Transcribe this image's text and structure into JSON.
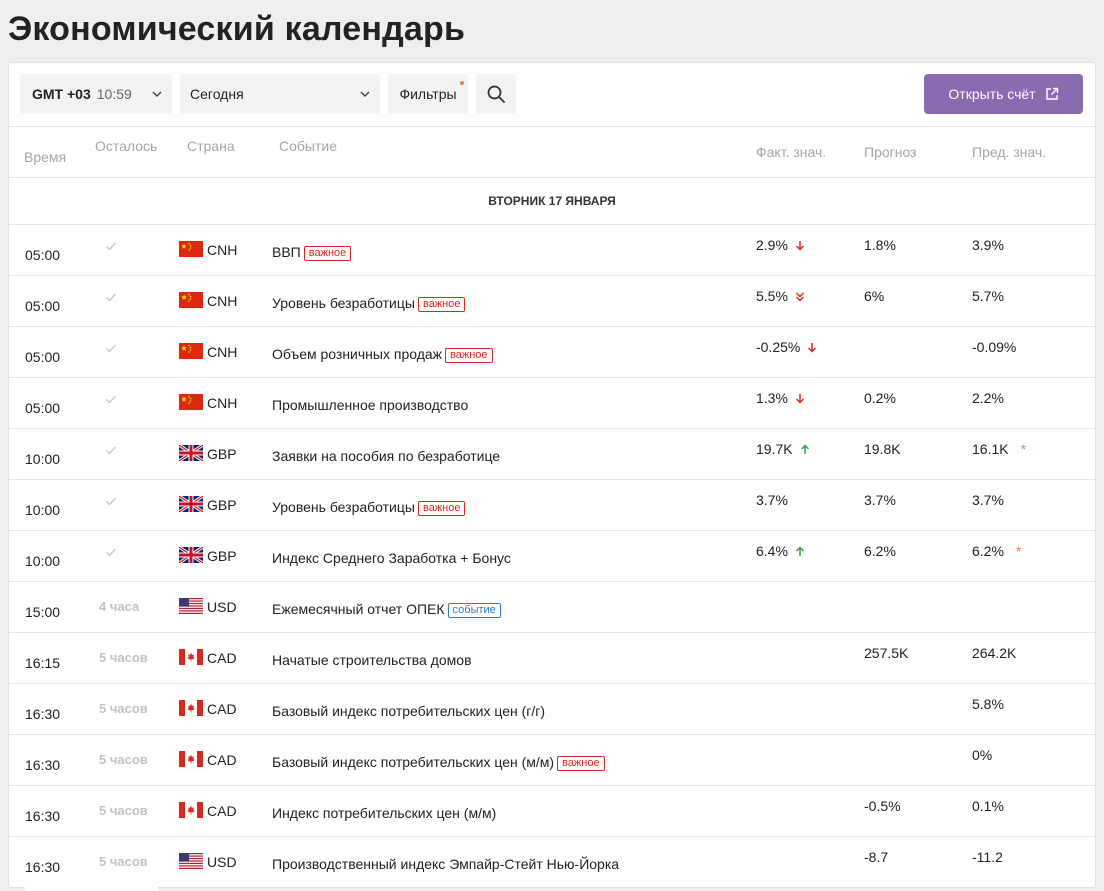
{
  "page_title": "Экономический календарь",
  "toolbar": {
    "timezone_offset": "GMT +03",
    "timezone_time": "10:59",
    "day_select": "Сегодня",
    "filters_label": "Фильтры",
    "open_account_label": "Открыть счёт"
  },
  "columns": {
    "time": "Время",
    "remaining": "Осталось",
    "country": "Страна",
    "event": "Событие",
    "actual": "Факт. знач.",
    "forecast": "Прогноз",
    "previous": "Пред. знач."
  },
  "date_header": "ВТОРНИК 17 ЯНВАРЯ",
  "colors": {
    "accent": "#8a6ab0",
    "important_badge": "#e0251b",
    "event_badge": "#2d78d6",
    "arrow_down": "#e0251b",
    "arrow_up": "#2ea84a",
    "revised_star": "#f07f3c"
  },
  "rows": [
    {
      "time": "05:00",
      "remaining": "",
      "passed": true,
      "flag": "cn",
      "currency": "CNH",
      "event": "ВВП",
      "badge": "важное",
      "badge_type": "red",
      "actual": "2.9%",
      "trend": "down",
      "forecast": "1.8%",
      "previous": "3.9%",
      "revised": ""
    },
    {
      "time": "05:00",
      "remaining": "",
      "passed": true,
      "flag": "cn",
      "currency": "CNH",
      "event": "Уровень безработицы",
      "badge": "важное",
      "badge_type": "red",
      "actual": "5.5%",
      "trend": "down2",
      "forecast": "6%",
      "previous": "5.7%",
      "revised": ""
    },
    {
      "time": "05:00",
      "remaining": "",
      "passed": true,
      "flag": "cn",
      "currency": "CNH",
      "event": "Объем розничных продаж",
      "badge": "важное",
      "badge_type": "red",
      "actual": "-0.25%",
      "trend": "down",
      "forecast": "",
      "previous": "-0.09%",
      "revised": ""
    },
    {
      "time": "05:00",
      "remaining": "",
      "passed": true,
      "flag": "cn",
      "currency": "CNH",
      "event": "Промышленное производство",
      "badge": "",
      "badge_type": "",
      "actual": "1.3%",
      "trend": "down",
      "forecast": "0.2%",
      "previous": "2.2%",
      "revised": ""
    },
    {
      "time": "10:00",
      "remaining": "",
      "passed": true,
      "flag": "gb",
      "currency": "GBP",
      "event": "Заявки на пособия по безработице",
      "badge": "",
      "badge_type": "",
      "actual": "19.7K",
      "trend": "up",
      "forecast": "19.8K",
      "previous": "16.1K",
      "revised": "*"
    },
    {
      "time": "10:00",
      "remaining": "",
      "passed": true,
      "flag": "gb",
      "currency": "GBP",
      "event": "Уровень безработицы",
      "badge": "важное",
      "badge_type": "red",
      "actual": "3.7%",
      "trend": "",
      "forecast": "3.7%",
      "previous": "3.7%",
      "revised": ""
    },
    {
      "time": "10:00",
      "remaining": "",
      "passed": true,
      "flag": "gb",
      "currency": "GBP",
      "event": "Индекс Среднего Заработка + Бонус",
      "badge": "",
      "badge_type": "",
      "actual": "6.4%",
      "trend": "up",
      "forecast": "6.2%",
      "previous": "6.2%",
      "revised": "*"
    },
    {
      "time": "15:00",
      "remaining": "4 часа",
      "passed": false,
      "flag": "us",
      "currency": "USD",
      "event": "Ежемесячный отчет ОПЕК",
      "badge": "событие",
      "badge_type": "blue",
      "actual": "",
      "trend": "",
      "forecast": "",
      "previous": "",
      "revised": ""
    },
    {
      "time": "16:15",
      "remaining": "5 часов",
      "passed": false,
      "flag": "ca",
      "currency": "CAD",
      "event": "Начатые строительства домов",
      "badge": "",
      "badge_type": "",
      "actual": "",
      "trend": "",
      "forecast": "257.5K",
      "previous": "264.2K",
      "revised": ""
    },
    {
      "time": "16:30",
      "remaining": "5 часов",
      "passed": false,
      "flag": "ca",
      "currency": "CAD",
      "event": "Базовый индекс потребительских цен (г/г)",
      "badge": "",
      "badge_type": "",
      "actual": "",
      "trend": "",
      "forecast": "",
      "previous": "5.8%",
      "revised": ""
    },
    {
      "time": "16:30",
      "remaining": "5 часов",
      "passed": false,
      "flag": "ca",
      "currency": "CAD",
      "event": "Базовый индекс потребительских цен (м/м)",
      "badge": "важное",
      "badge_type": "red",
      "actual": "",
      "trend": "",
      "forecast": "",
      "previous": "0%",
      "revised": ""
    },
    {
      "time": "16:30",
      "remaining": "5 часов",
      "passed": false,
      "flag": "ca",
      "currency": "CAD",
      "event": "Индекс потребительских цен (м/м)",
      "badge": "",
      "badge_type": "",
      "actual": "",
      "trend": "",
      "forecast": "-0.5%",
      "previous": "0.1%",
      "revised": ""
    },
    {
      "time": "16:30",
      "remaining": "5 часов",
      "passed": false,
      "flag": "us",
      "currency": "USD",
      "event": "Производственный индекс Эмпайр-Стейт Нью-Йорка",
      "badge": "",
      "badge_type": "",
      "actual": "",
      "trend": "",
      "forecast": "-8.7",
      "previous": "-11.2",
      "revised": ""
    }
  ]
}
